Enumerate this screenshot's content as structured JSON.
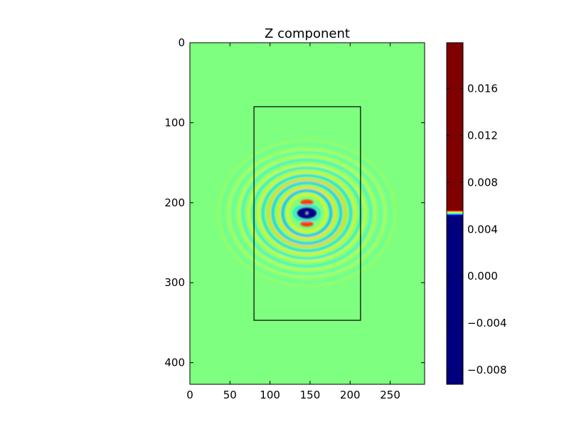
{
  "chart_data": {
    "type": "heatmap",
    "title": "Z component",
    "xlabel": "",
    "ylabel": "",
    "xlim": [
      0,
      293
    ],
    "ylim": [
      427,
      0
    ],
    "x_ticks": [
      0,
      50,
      100,
      150,
      200,
      250
    ],
    "x_tick_labels": [
      "0",
      "50",
      "100",
      "150",
      "200",
      "250"
    ],
    "y_ticks": [
      0,
      100,
      200,
      300,
      400
    ],
    "y_tick_labels": [
      "0",
      "100",
      "200",
      "300",
      "400"
    ],
    "background_value": 0.0,
    "rectangle": {
      "x0": 80,
      "y0": 80,
      "x1": 213,
      "y1": 347
    },
    "source": {
      "x": 146,
      "y": 213,
      "note": "concentric wave rings"
    },
    "colormap": "jet",
    "colorbar": {
      "vmin": -0.0092,
      "vmax": 0.0199,
      "ticks": [
        0.016,
        0.012,
        0.008,
        0.004,
        0.0,
        -0.004,
        -0.008
      ],
      "tick_labels": [
        "0.016",
        "0.012",
        "0.008",
        "0.004",
        "0.000",
        "−0.004",
        "−0.008"
      ],
      "saturation_note": "colormap spans roughly −0.0002 to 0.0002; values outside saturate"
    }
  },
  "colors": {
    "field_background": "#7fff7f",
    "positive_saturated": "#7f0000",
    "negative_saturated": "#00007f"
  }
}
